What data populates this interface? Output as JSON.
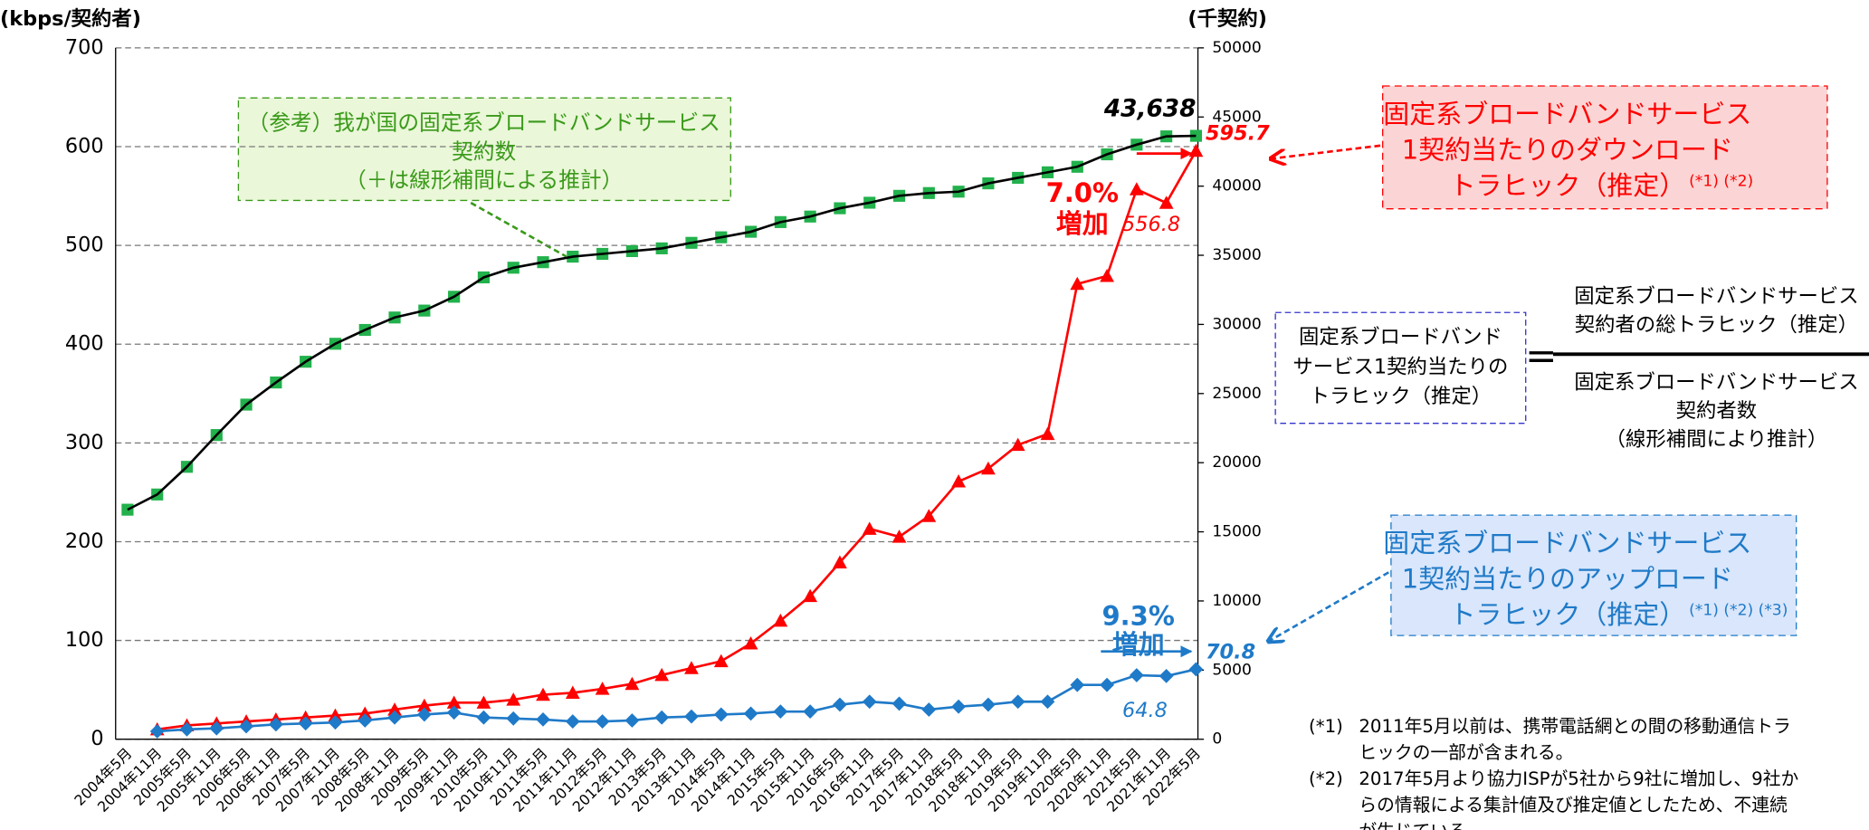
{
  "chart_data": {
    "type": "line",
    "y_label": "(kbps/契約者)",
    "y2_label": "(千契約)",
    "categories": [
      "2004年5月",
      "2004年11月",
      "2005年5月",
      "2005年11月",
      "2006年5月",
      "2006年11月",
      "2007年5月",
      "2007年11月",
      "2008年5月",
      "2008年11月",
      "2009年5月",
      "2009年11月",
      "2010年5月",
      "2010年11月",
      "2011年5月",
      "2011年11月",
      "2012年5月",
      "2012年11月",
      "2013年5月",
      "2013年11月",
      "2014年5月",
      "2014年11月",
      "2015年5月",
      "2015年11月",
      "2016年5月",
      "2016年11月",
      "2017年5月",
      "2017年11月",
      "2018年5月",
      "2018年11月",
      "2019年5月",
      "2019年11月",
      "2020年5月",
      "2020年11月",
      "2021年5月",
      "2021年11月",
      "2022年5月"
    ],
    "series": [
      {
        "color": "#ff0000",
        "values": [
          null,
          10,
          14,
          16,
          18,
          20,
          22,
          24,
          26,
          30,
          34,
          37,
          37,
          40,
          45,
          47,
          51,
          56,
          65,
          72,
          79,
          97,
          120,
          145,
          179,
          213,
          205,
          226,
          261,
          274,
          298,
          309,
          461,
          469,
          556.8,
          543,
          595.7
        ],
        "value_labels": [
          null,
          null,
          null,
          null,
          null,
          null,
          null,
          null,
          null,
          null,
          null,
          null,
          null,
          null,
          null,
          null,
          null,
          null,
          null,
          null,
          null,
          null,
          null,
          null,
          null,
          null,
          null,
          null,
          null,
          null,
          null,
          null,
          null,
          null,
          "556.8",
          null,
          "595.7"
        ]
      },
      {
        "color": "#1f7ac8",
        "values": [
          null,
          8,
          10,
          11,
          13,
          15,
          16,
          17,
          19,
          22,
          25,
          27,
          22,
          21,
          20,
          18,
          18,
          19,
          22,
          23,
          25,
          26,
          28,
          28,
          35,
          38,
          36,
          30,
          33,
          35,
          38,
          38,
          55,
          55,
          64.8,
          64,
          70.8
        ],
        "value_labels": [
          null,
          null,
          null,
          null,
          null,
          null,
          null,
          null,
          null,
          null,
          null,
          null,
          null,
          null,
          null,
          null,
          null,
          null,
          null,
          null,
          null,
          null,
          null,
          null,
          null,
          null,
          null,
          null,
          null,
          null,
          null,
          null,
          null,
          null,
          "64.8",
          null,
          "70.8"
        ]
      },
      {
        "color": "#22b14c",
        "axis": "y2",
        "values": [
          16600,
          17700,
          19700,
          22000,
          24200,
          25800,
          27300,
          28600,
          29600,
          30500,
          31000,
          32000,
          33400,
          34100,
          34500,
          34900,
          35100,
          35300,
          35500,
          35900,
          36300,
          36700,
          37400,
          37800,
          38400,
          38800,
          39300,
          39500,
          39600,
          40200,
          40600,
          41000,
          41400,
          42300,
          43000,
          43600,
          43638
        ],
        "value_labels": [
          null,
          null,
          null,
          null,
          null,
          null,
          null,
          null,
          null,
          null,
          null,
          null,
          null,
          null,
          null,
          null,
          null,
          null,
          null,
          null,
          null,
          null,
          null,
          null,
          null,
          null,
          null,
          null,
          null,
          null,
          null,
          null,
          null,
          null,
          null,
          null,
          "43,638"
        ]
      }
    ],
    "ylim": [
      0,
      700
    ],
    "yticks": [
      0,
      100,
      200,
      300,
      400,
      500,
      600,
      700
    ],
    "y2lim": [
      0,
      50000
    ],
    "y2ticks": [
      0,
      5000,
      10000,
      15000,
      20000,
      25000,
      30000,
      35000,
      40000,
      45000,
      50000
    ],
    "grid": true,
    "annotations": {
      "subscribers_box": [
        "（参考）我が国の固定系ブロードバンドサービス",
        "契約数",
        "（＋は線形補間による推計）"
      ],
      "download_box": {
        "lines": [
          "固定系ブロードバンドサービス",
          "1契約当たりのダウンロード",
          "トラヒック（推定）"
        ],
        "refs": "(*1) (*2)"
      },
      "upload_box": {
        "lines": [
          "固定系ブロードバンドサービス",
          "1契約当たりのアップロード",
          "トラヒック（推定）"
        ],
        "refs": "(*1) (*2) (*3)"
      },
      "download_growth": [
        "7.0%",
        "増加"
      ],
      "upload_growth": [
        "9.3%",
        "増加"
      ],
      "formula": {
        "left": [
          "固定系ブロードバンド",
          "サービス1契約当たりの",
          "トラヒック（推定）"
        ],
        "equals": "=",
        "numerator": [
          "固定系ブロードバンドサービス",
          "契約者の総トラヒック（推定）"
        ],
        "denominator": [
          "固定系ブロードバンドサービス",
          "契約者数",
          "（線形補間により推計）"
        ]
      },
      "footnotes": [
        {
          "mark": "(*1)",
          "lines": [
            "2011年5月以前は、携帯電話網との間の移動通信トラ",
            "ヒックの一部が含まれる。"
          ]
        },
        {
          "mark": "(*2)",
          "lines": [
            "2017年5月より協力ISPが5社から9社に増加し、9社か",
            "らの情報による集計値及び推定値としたため、不連続",
            "が生じている。"
          ]
        }
      ]
    }
  }
}
